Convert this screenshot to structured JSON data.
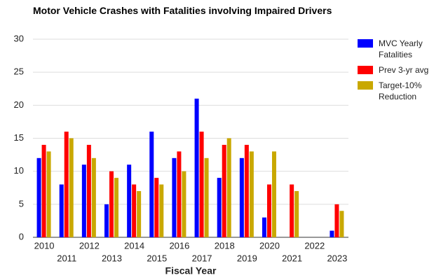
{
  "chart_data": {
    "type": "bar",
    "title": "Motor Vehicle Crashes with Fatalities involving Impaired Drivers",
    "x_label": "Fiscal Year",
    "categories": [
      "2010",
      "2011",
      "2012",
      "2013",
      "2014",
      "2015",
      "2016",
      "2017",
      "2018",
      "2019",
      "2020",
      "2021",
      "2022",
      "2023"
    ],
    "series": [
      {
        "name": "MVC Yearly Fatalities",
        "color": "#0000ff",
        "values": [
          12,
          8,
          11,
          5,
          11,
          16,
          12,
          21,
          9,
          12,
          3,
          null,
          null,
          1
        ]
      },
      {
        "name": "Prev 3-yr avg",
        "color": "#ff0000",
        "values": [
          14,
          16,
          14,
          10,
          8,
          9,
          13,
          16,
          14,
          14,
          8,
          8,
          null,
          5
        ]
      },
      {
        "name": "Target-10% Reduction",
        "color": "#c9a800",
        "values": [
          13,
          15,
          12,
          9,
          7,
          8,
          10,
          12,
          15,
          13,
          13,
          7,
          null,
          4
        ]
      }
    ],
    "ylim": [
      0,
      30
    ],
    "yticks": [
      0,
      5,
      10,
      15,
      20,
      25,
      30
    ],
    "grid": true,
    "legend": "right"
  }
}
